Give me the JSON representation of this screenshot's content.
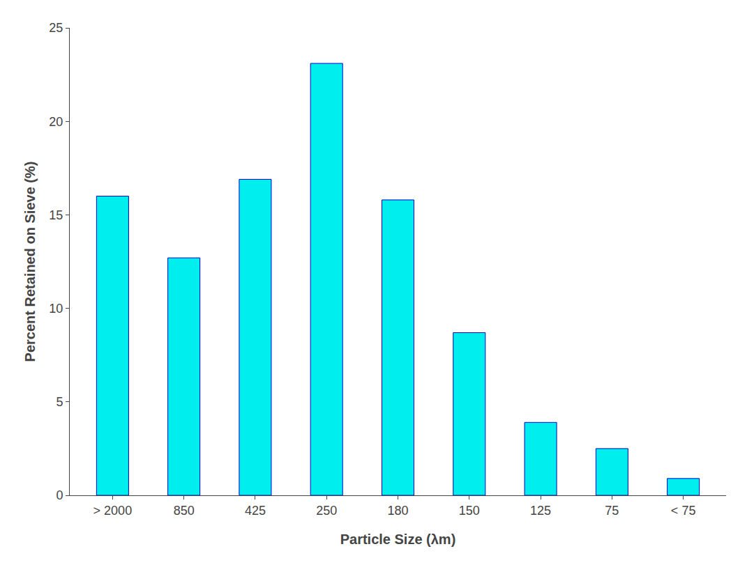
{
  "chart_data": {
    "type": "bar",
    "categories": [
      "> 2000",
      "850",
      "425",
      "250",
      "180",
      "150",
      "125",
      "75",
      "< 75"
    ],
    "values": [
      16.0,
      12.7,
      16.9,
      23.1,
      15.8,
      8.7,
      3.9,
      2.5,
      0.9
    ],
    "color": "#00EEEE",
    "xlabel": "Particle Size (λm)",
    "ylabel": "Percent Retained on Sieve (%)",
    "ylim": [
      0,
      25
    ],
    "yticks": [
      0,
      5,
      10,
      15,
      20,
      25
    ],
    "grid": false
  }
}
